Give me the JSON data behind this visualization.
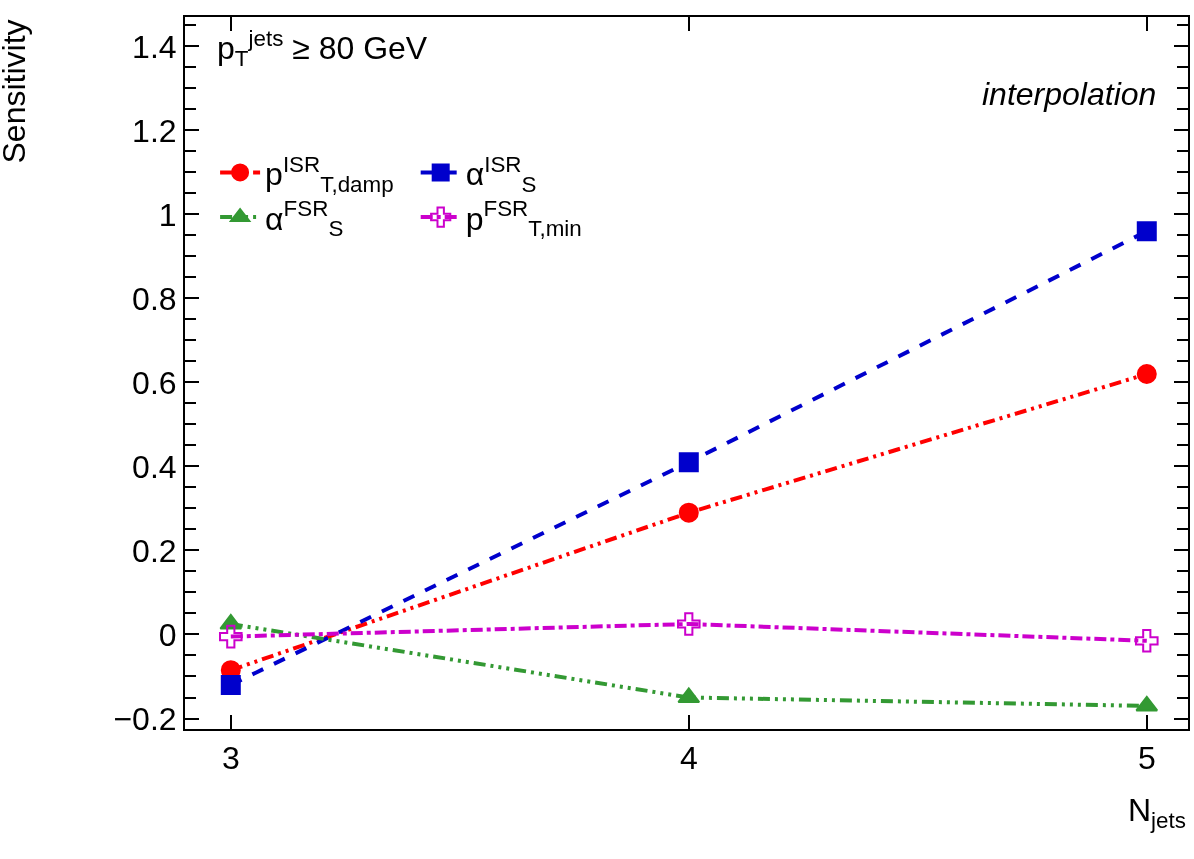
{
  "chart_data": {
    "type": "line",
    "xlabel": "N$_{jets}$",
    "ylabel": "Sensitivity",
    "x": [
      3,
      4,
      5
    ],
    "series": [
      {
        "name": "p$^{ISR}$$_{T,damp}$",
        "color": "#ff0000",
        "values": [
          -0.085,
          0.29,
          0.62
        ],
        "marker": "circle",
        "line_style": "dashdotdot"
      },
      {
        "name": "α$^{ISR}$$_{S}$",
        "color": "#0000cc",
        "values": [
          -0.12,
          0.41,
          0.96
        ],
        "marker": "square",
        "line_style": "dashed"
      },
      {
        "name": "α$^{FSR}$$_{S}$",
        "color": "#339933",
        "values": [
          0.025,
          -0.15,
          -0.17
        ],
        "marker": "triangle",
        "line_style": "dashdotdotdot"
      },
      {
        "name": "p$^{FSR}$$_{T,min}$",
        "color": "#cc00cc",
        "values": [
          -0.005,
          0.025,
          -0.015
        ],
        "marker": "cross-open",
        "line_style": "dashdot"
      }
    ],
    "annotations": [
      "p$_{T}$$^{jets}$ ≥ 80 GeV",
      "interpolation"
    ],
    "xlim": [
      2.9,
      5.09
    ],
    "ylim": [
      -0.225,
      1.47
    ],
    "xticks": [
      3,
      4,
      5
    ],
    "yticks": [
      {
        "value": -0.2,
        "label": "−0.2"
      },
      0,
      0.2,
      0.4,
      0.6,
      0.8,
      1,
      1.2,
      1.4
    ],
    "legend": "top left"
  }
}
